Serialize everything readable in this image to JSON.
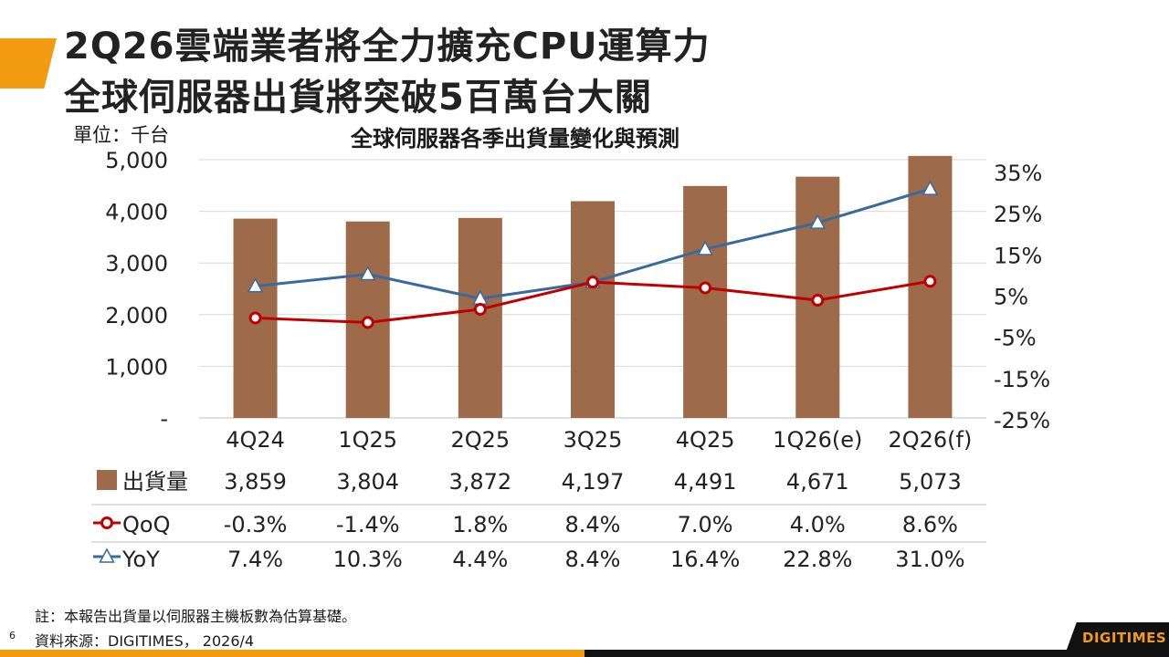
{
  "header": {
    "title_line1": "2Q26雲端業者將全力擴充CPU運算力",
    "title_line2": "全球伺服器出貨將突破5百萬台大關",
    "accent_color": "#f39c12"
  },
  "chart_data": {
    "type": "bar+line",
    "title": "全球伺服器各季出貨量變化與預測",
    "unit_label": "單位：千台",
    "categories": [
      "4Q24",
      "1Q25",
      "2Q25",
      "3Q25",
      "4Q25",
      "1Q26(e)",
      "2Q26(f)"
    ],
    "left_axis": {
      "ylim": [
        0,
        5000
      ],
      "ticks": [
        "-",
        "1,000",
        "2,000",
        "3,000",
        "4,000",
        "5,000"
      ],
      "tick_values": [
        0,
        1000,
        2000,
        3000,
        4000,
        5000
      ]
    },
    "right_axis": {
      "ylim": [
        -25,
        35
      ],
      "ticks": [
        "-25%",
        "-15%",
        "-5%",
        "5%",
        "15%",
        "25%",
        "35%"
      ],
      "tick_values": [
        -25,
        -15,
        -5,
        5,
        15,
        25,
        35
      ]
    },
    "grid": true,
    "series": [
      {
        "name": "出貨量",
        "type": "bar",
        "axis": "left",
        "color": "#9e6b4a",
        "values": [
          3859,
          3804,
          3872,
          4197,
          4491,
          4671,
          5073
        ],
        "labels": [
          "3,859",
          "3,804",
          "3,872",
          "4,197",
          "4,491",
          "4,671",
          "5,073"
        ]
      },
      {
        "name": "QoQ",
        "type": "line",
        "axis": "right",
        "color": "#c00000",
        "marker": "circle",
        "values": [
          -0.3,
          -1.4,
          1.8,
          8.4,
          7.0,
          4.0,
          8.6
        ],
        "labels": [
          "-0.3%",
          "-1.4%",
          "1.8%",
          "8.4%",
          "7.0%",
          "4.0%",
          "8.6%"
        ]
      },
      {
        "name": "YoY",
        "type": "line",
        "axis": "right",
        "color": "#3a6a9c",
        "marker": "triangle",
        "values": [
          7.4,
          10.3,
          4.4,
          8.4,
          16.4,
          22.8,
          31.0
        ],
        "labels": [
          "7.4%",
          "10.3%",
          "4.4%",
          "8.4%",
          "16.4%",
          "22.8%",
          "31.0%"
        ]
      }
    ]
  },
  "footer": {
    "note": "註：本報告出貨量以伺服器主機板數為估算基礎。",
    "source": "資料來源：DIGITIMES， 2026/4",
    "page": "6",
    "logo": "DIGITIMES"
  }
}
